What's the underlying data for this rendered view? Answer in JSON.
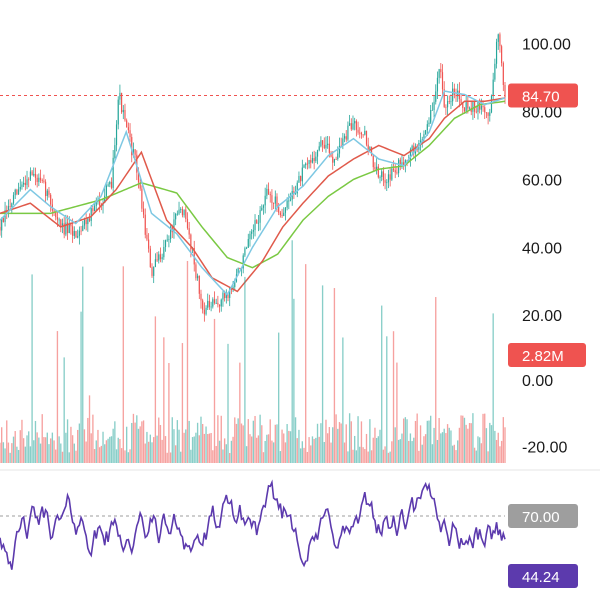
{
  "chart_data": [
    {
      "panel": "price",
      "type": "candlestick",
      "title": "",
      "xlabel": "",
      "ylabel": "",
      "ylim": [
        18,
        104
      ],
      "y_ticks": [
        "100.00",
        "80.00",
        "60.00",
        "40.00",
        "20.00"
      ],
      "grid": false,
      "current_price": {
        "value": 84.7,
        "label": "84.70",
        "color": "#ef5350"
      },
      "colors": {
        "up": "#26a69a",
        "down": "#ef5350",
        "ma_fast": "#7ec8e3",
        "ma_mid": "#e05a4b",
        "ma_slow": "#7ac943"
      },
      "price_path": [
        [
          0,
          46
        ],
        [
          0.03,
          55
        ],
        [
          0.06,
          62
        ],
        [
          0.09,
          57
        ],
        [
          0.12,
          46
        ],
        [
          0.15,
          44
        ],
        [
          0.18,
          50
        ],
        [
          0.22,
          58
        ],
        [
          0.235,
          86
        ],
        [
          0.245,
          78
        ],
        [
          0.27,
          64
        ],
        [
          0.3,
          32
        ],
        [
          0.33,
          42
        ],
        [
          0.36,
          52
        ],
        [
          0.38,
          40
        ],
        [
          0.4,
          22
        ],
        [
          0.43,
          23
        ],
        [
          0.46,
          28
        ],
        [
          0.5,
          44
        ],
        [
          0.53,
          56
        ],
        [
          0.56,
          50
        ],
        [
          0.6,
          62
        ],
        [
          0.64,
          71
        ],
        [
          0.66,
          66
        ],
        [
          0.7,
          77
        ],
        [
          0.72,
          74
        ],
        [
          0.75,
          60
        ],
        [
          0.78,
          62
        ],
        [
          0.8,
          66
        ],
        [
          0.83,
          70
        ],
        [
          0.86,
          82
        ],
        [
          0.87,
          95
        ],
        [
          0.88,
          79
        ],
        [
          0.9,
          87
        ],
        [
          0.92,
          82
        ],
        [
          0.95,
          81
        ],
        [
          0.97,
          79
        ],
        [
          0.985,
          104
        ],
        [
          1,
          85
        ]
      ],
      "ma_fast_path": [
        [
          0,
          48
        ],
        [
          0.06,
          57
        ],
        [
          0.1,
          52
        ],
        [
          0.15,
          47
        ],
        [
          0.2,
          55
        ],
        [
          0.25,
          74
        ],
        [
          0.3,
          50
        ],
        [
          0.35,
          44
        ],
        [
          0.4,
          34
        ],
        [
          0.45,
          26
        ],
        [
          0.5,
          40
        ],
        [
          0.55,
          52
        ],
        [
          0.6,
          58
        ],
        [
          0.65,
          67
        ],
        [
          0.7,
          72
        ],
        [
          0.75,
          66
        ],
        [
          0.8,
          64
        ],
        [
          0.85,
          74
        ],
        [
          0.88,
          86
        ],
        [
          0.92,
          85
        ],
        [
          0.96,
          82
        ],
        [
          1,
          84
        ]
      ],
      "ma_mid_path": [
        [
          0,
          50
        ],
        [
          0.06,
          53
        ],
        [
          0.12,
          46
        ],
        [
          0.18,
          49
        ],
        [
          0.23,
          57
        ],
        [
          0.28,
          68
        ],
        [
          0.33,
          48
        ],
        [
          0.38,
          40
        ],
        [
          0.42,
          31
        ],
        [
          0.47,
          27
        ],
        [
          0.52,
          36
        ],
        [
          0.56,
          46
        ],
        [
          0.6,
          53
        ],
        [
          0.65,
          61
        ],
        [
          0.7,
          66
        ],
        [
          0.75,
          70
        ],
        [
          0.8,
          67
        ],
        [
          0.85,
          72
        ],
        [
          0.88,
          78
        ],
        [
          0.92,
          83
        ],
        [
          0.96,
          83
        ],
        [
          1,
          84
        ]
      ],
      "ma_slow_path": [
        [
          0,
          50
        ],
        [
          0.1,
          50
        ],
        [
          0.2,
          54
        ],
        [
          0.28,
          59
        ],
        [
          0.35,
          56
        ],
        [
          0.4,
          46
        ],
        [
          0.45,
          37
        ],
        [
          0.5,
          34
        ],
        [
          0.55,
          38
        ],
        [
          0.6,
          48
        ],
        [
          0.65,
          55
        ],
        [
          0.7,
          60
        ],
        [
          0.75,
          63
        ],
        [
          0.8,
          64
        ],
        [
          0.85,
          70
        ],
        [
          0.9,
          78
        ],
        [
          0.95,
          82
        ],
        [
          1,
          83
        ]
      ]
    },
    {
      "panel": "volume",
      "type": "bar",
      "title": "",
      "xlabel": "",
      "ylabel": "",
      "ylim": [
        -25,
        45
      ],
      "y_ticks": [
        "0.00",
        "-20.00"
      ],
      "grid": false,
      "current_value": {
        "value": 2.82,
        "label": "2.82M",
        "color": "#ef5350"
      },
      "bar_count": 300,
      "colors": {
        "up": "#26a69a",
        "down": "#ef5350"
      }
    },
    {
      "panel": "oscillator",
      "type": "line",
      "title": "",
      "xlabel": "",
      "ylabel": "",
      "ylim": [
        40,
        75
      ],
      "reference_line": {
        "value": 70,
        "label": "70.00",
        "color": "#9e9e9e"
      },
      "current_value": {
        "value": 44.24,
        "label": "44.24",
        "color": "#5c3aad"
      },
      "line_color": "#5c3aad",
      "point_count": 300
    }
  ]
}
